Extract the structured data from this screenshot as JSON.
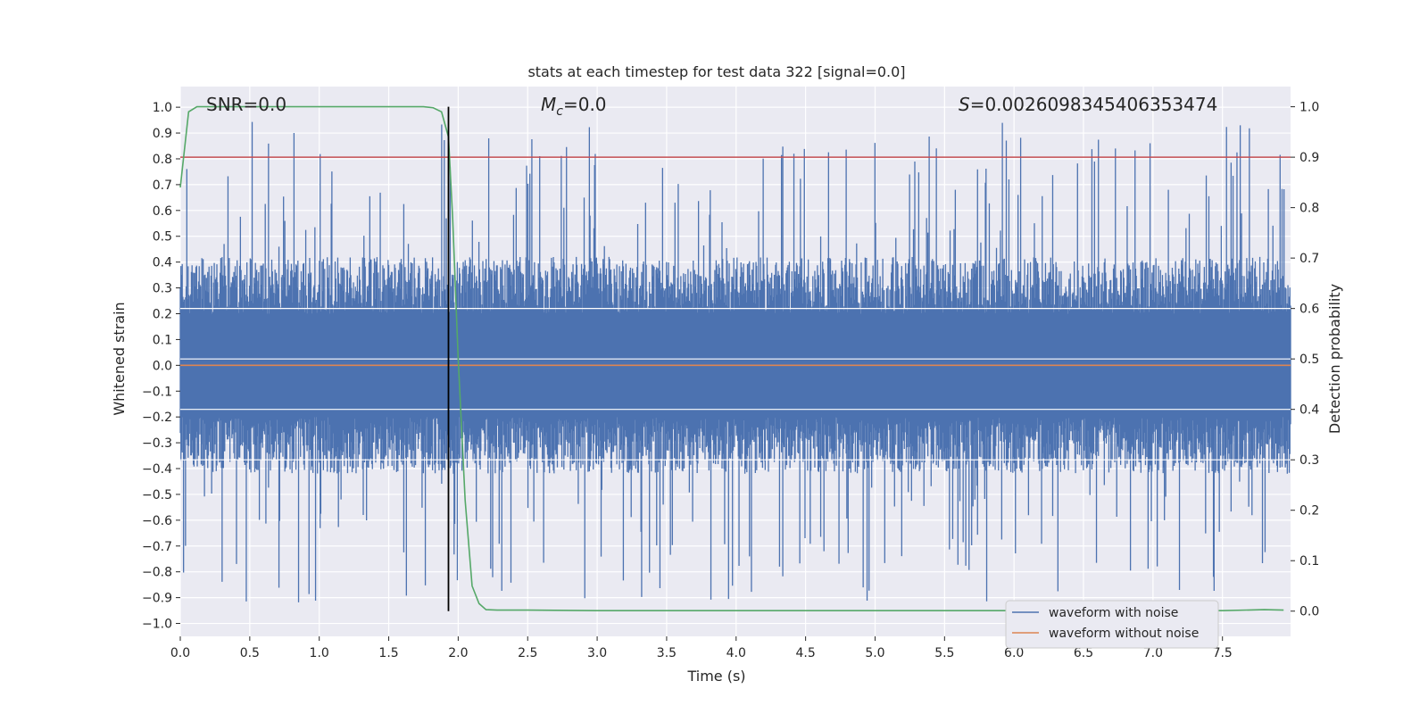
{
  "chart_data": {
    "type": "line",
    "title": "stats at each timestep for test data 322 [signal=0.0]",
    "xlabel": "Time (s)",
    "ylabel_left": "Whitened strain",
    "ylabel_right": "Detection probability",
    "xlim": [
      0.0,
      7.99
    ],
    "ylim_left": [
      -1.05,
      1.08
    ],
    "ylim_right": [
      -0.05,
      1.04
    ],
    "x_ticks": [
      "0.0",
      "0.5",
      "1.0",
      "1.5",
      "2.0",
      "2.5",
      "3.0",
      "3.5",
      "4.0",
      "4.5",
      "5.0",
      "5.5",
      "6.0",
      "6.5",
      "7.0",
      "7.5"
    ],
    "y_ticks_left": [
      "-1.0",
      "-0.9",
      "-0.8",
      "-0.7",
      "-0.6",
      "-0.5",
      "-0.4",
      "-0.3",
      "-0.2",
      "-0.1",
      "0.0",
      "0.1",
      "0.2",
      "0.3",
      "0.4",
      "0.5",
      "0.6",
      "0.7",
      "0.8",
      "0.9",
      "1.0"
    ],
    "y_ticks_right": [
      "0.0",
      "0.1",
      "0.2",
      "0.3",
      "0.4",
      "0.5",
      "0.6",
      "0.7",
      "0.8",
      "0.9",
      "1.0"
    ],
    "grid": true,
    "annotations": {
      "snr": "SNR=0.0",
      "mc_symbol": "M",
      "mc_sub": "c",
      "mc_value": "=0.0",
      "s_symbol": "S",
      "s_value": "=0.0026098345406353474"
    },
    "series": [
      {
        "name": "waveform with noise",
        "color": "#4c72b0",
        "axis": "left",
        "description": "dense noise, mostly within ±0.45, spikes up to about ±0.95"
      },
      {
        "name": "waveform without noise",
        "color": "#dd8452",
        "axis": "left",
        "x": [
          0.0,
          7.99
        ],
        "y": [
          0.0,
          0.0
        ]
      },
      {
        "name": "detection probability",
        "color": "#55a868",
        "axis": "right",
        "x": [
          0.0,
          0.06,
          0.12,
          0.5,
          1.0,
          1.5,
          1.75,
          1.82,
          1.88,
          1.93,
          1.96,
          2.0,
          2.05,
          2.1,
          2.15,
          2.2,
          2.28,
          2.5,
          3.0,
          4.0,
          5.0,
          6.0,
          7.0,
          7.5,
          7.8,
          7.94
        ],
        "y": [
          0.84,
          0.99,
          1.0,
          1.0,
          1.0,
          1.0,
          1.0,
          0.998,
          0.99,
          0.94,
          0.78,
          0.5,
          0.22,
          0.05,
          0.015,
          0.003,
          0.002,
          0.002,
          0.001,
          0.001,
          0.001,
          0.001,
          0.001,
          0.001,
          0.003,
          0.002
        ]
      }
    ],
    "threshold": {
      "color": "#c44e52",
      "axis": "right",
      "value": 0.9
    },
    "marker_line": {
      "color": "#000000",
      "x": 1.93
    },
    "legend_position": "lower right"
  }
}
